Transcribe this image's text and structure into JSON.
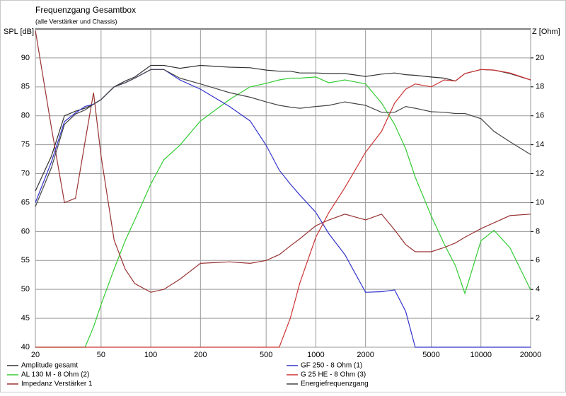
{
  "chart_data": {
    "type": "line",
    "title": "Frequenzgang Gesamtbox",
    "subtitle": "(alle Verstärker und Chassis)",
    "y_label": "SPL [dB]",
    "y2_label": "Z [Ohm]",
    "x_scale": "log",
    "grid": true,
    "legend_position": "bottom",
    "x": [
      20,
      25,
      30,
      35,
      40,
      45,
      50,
      60,
      70,
      80,
      100,
      120,
      150,
      200,
      300,
      400,
      500,
      600,
      700,
      800,
      1000,
      1200,
      1500,
      2000,
      2500,
      3000,
      3500,
      4000,
      5000,
      6000,
      7000,
      8000,
      10000,
      12000,
      15000,
      20000
    ],
    "xlim": [
      20,
      20000
    ],
    "xticks": [
      20,
      50,
      100,
      200,
      500,
      1000,
      2000,
      5000,
      10000,
      20000
    ],
    "ylim": [
      40,
      95
    ],
    "yticks": [
      40,
      45,
      50,
      55,
      60,
      65,
      70,
      75,
      80,
      85,
      90
    ],
    "y2lim": [
      0,
      22
    ],
    "y2ticks": [
      2,
      4,
      6,
      8,
      10,
      12,
      14,
      16,
      18,
      20
    ],
    "series": [
      {
        "name": "Amplitude gesamt",
        "color": "#333333",
        "values": [
          67,
          73,
          80,
          80.8,
          81.3,
          82,
          82.8,
          85,
          86,
          86.7,
          88.7,
          88.7,
          88.2,
          88.7,
          88.4,
          88.3,
          87.9,
          87.7,
          87.7,
          87.4,
          87.4,
          87.3,
          87.3,
          86.8,
          87.2,
          87.4,
          87.1,
          87,
          86.7,
          86.5,
          86,
          87.3,
          88,
          87.9,
          87.3,
          86.2
        ]
      },
      {
        "name": "AL 130 M - 8 Ohm (2)",
        "color": "#33cc33",
        "values": [
          40,
          40,
          40,
          40,
          40,
          43.5,
          47.4,
          53.5,
          58.4,
          62,
          68.2,
          72.4,
          74.9,
          79.1,
          82.8,
          85,
          85.6,
          86.2,
          86.5,
          86.5,
          86.7,
          85.7,
          86.2,
          85.5,
          82.2,
          78.5,
          74.3,
          69.4,
          62.7,
          57.8,
          54.1,
          49.3,
          58.4,
          60.2,
          57.2,
          49.9
        ]
      },
      {
        "name": "Impedanz Verstärker 1",
        "color": "#993333",
        "axis": "y2",
        "values": [
          21.9,
          15.2,
          10,
          10.3,
          14.2,
          17.6,
          13.2,
          7.4,
          5.4,
          4.4,
          3.8,
          4,
          4.7,
          5.8,
          5.9,
          5.8,
          6,
          6.4,
          7,
          7.5,
          8.4,
          8.8,
          9.2,
          8.8,
          9.2,
          8.1,
          7.1,
          6.6,
          6.6,
          6.9,
          7.2,
          7.6,
          8.2,
          8.6,
          9.1,
          9.2
        ]
      },
      {
        "name": "GF 250 - 8 Ohm (1)",
        "color": "#3333cc",
        "values": [
          65,
          72,
          79,
          80.5,
          81.6,
          82,
          82.8,
          85,
          85.7,
          86.5,
          88,
          88,
          86.2,
          84.6,
          81.6,
          79.1,
          74.9,
          70.6,
          68.2,
          66.3,
          63.3,
          59.6,
          56,
          49.5,
          49.6,
          49.9,
          46.2,
          40,
          40,
          40,
          40,
          40,
          40,
          40,
          40,
          40
        ]
      },
      {
        "name": "G 25 HE - 8 Ohm (3)",
        "color": "#cc3333",
        "values": [
          40,
          40,
          40,
          40,
          40,
          40,
          40,
          40,
          40,
          40,
          40,
          40,
          40,
          40,
          40,
          40,
          40,
          40,
          45,
          51.1,
          59,
          63.3,
          67.6,
          73.7,
          77.3,
          82.2,
          84.6,
          85.5,
          85,
          86.2,
          86,
          87.3,
          88,
          87.9,
          87.4,
          86.2
        ]
      },
      {
        "name": "Energiefrequenzgang",
        "color": "#444444",
        "values": [
          64.3,
          71,
          78.5,
          80.3,
          81,
          82,
          82.8,
          85,
          85.7,
          86.5,
          88,
          88,
          86.5,
          85.5,
          84,
          83.2,
          82.4,
          81.8,
          81.5,
          81.3,
          81.6,
          81.8,
          82.4,
          81.8,
          80.6,
          80.6,
          81.6,
          81.3,
          80.7,
          80.6,
          80.4,
          80.4,
          79.5,
          77.3,
          75.5,
          73.3
        ]
      }
    ]
  }
}
